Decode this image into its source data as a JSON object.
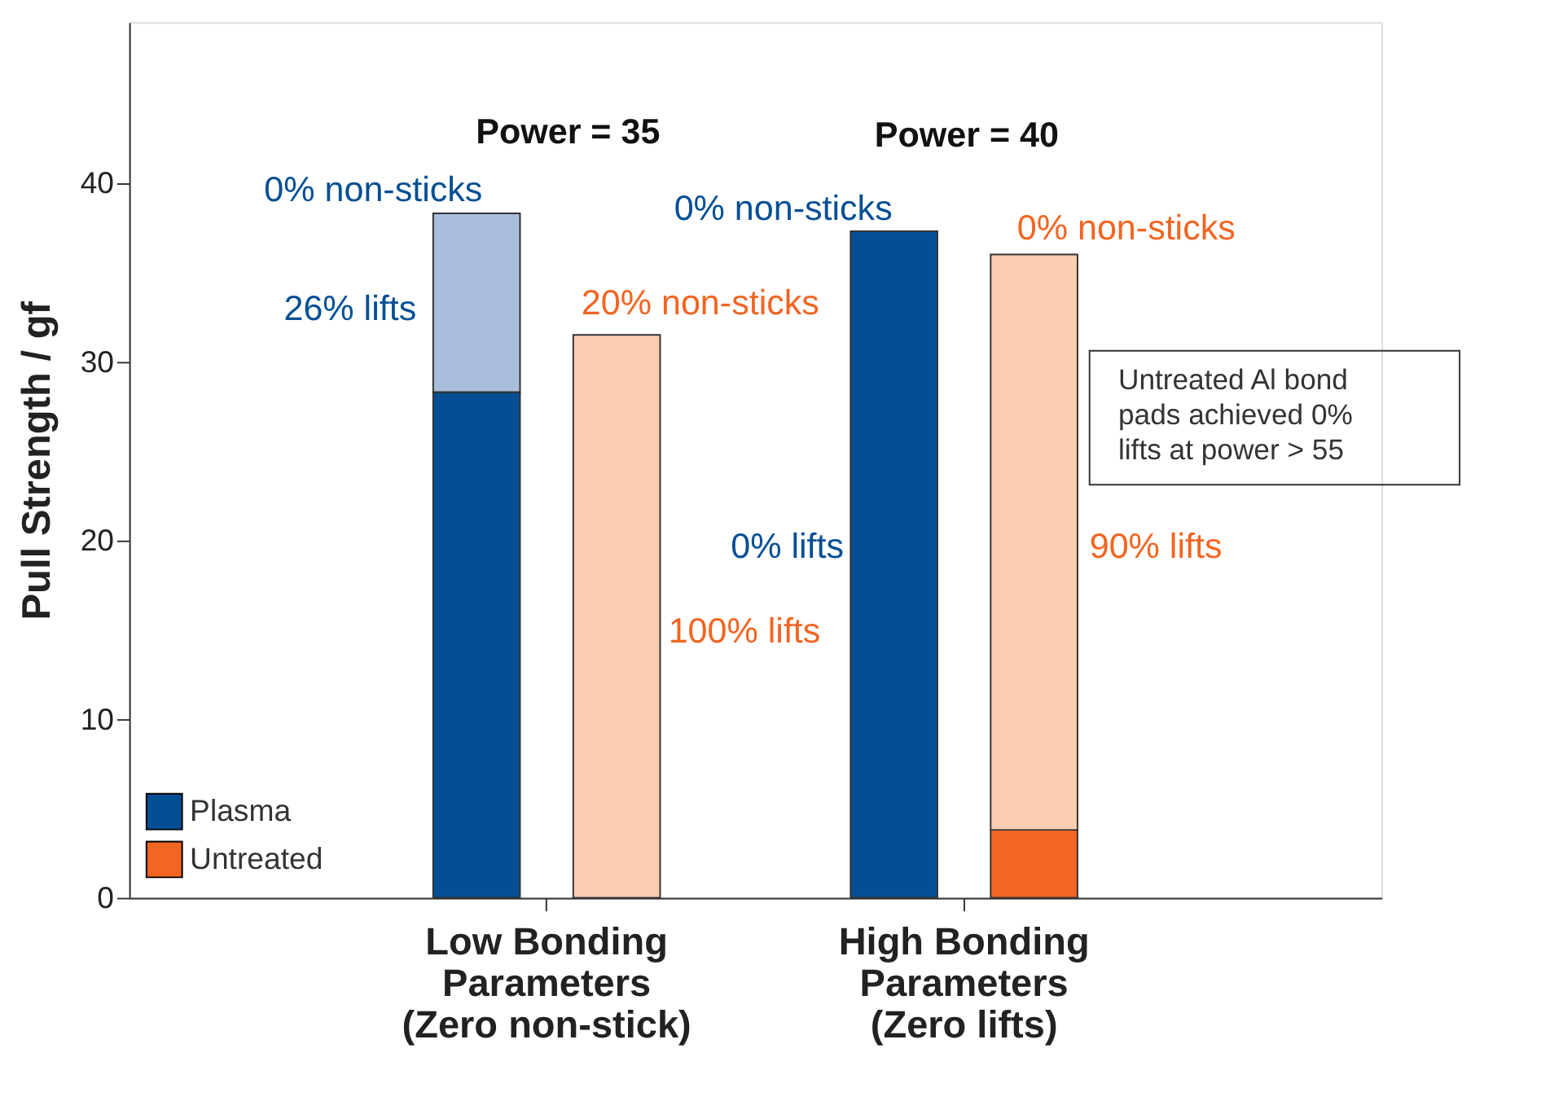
{
  "chart_data": {
    "type": "bar",
    "stacked": true,
    "ylabel": "Pull Strength / gf",
    "categories": [
      null,
      null,
      null,
      null
    ],
    "series": [
      {
        "name": "Plasma",
        "color": "#044f94",
        "values": [
          28.3,
          null,
          37.3,
          null
        ]
      },
      {
        "color": "#a9bedb",
        "values": [
          10.0,
          null,
          null,
          null
        ]
      },
      {
        "name": "Untreated",
        "color": "#f26522",
        "values": [
          null,
          null,
          null,
          3.8
        ]
      },
      {
        "color": "#fbcdb0",
        "values": [
          null,
          31.5,
          null,
          32.2
        ]
      }
    ],
    "ylim": [
      0,
      49
    ],
    "yticks": [
      0,
      10,
      20,
      30,
      40
    ],
    "legend": "bottom left",
    "grid": false,
    "annotations": [
      "0% non-sticks",
      "26% lifts",
      "20% non-sticks",
      "100% lifts",
      "0% non-sticks",
      "0% lifts",
      "0% non-sticks",
      "90% lifts",
      "Power = 35",
      "Power = 40",
      "Untreated Al bond\npads achieved 0%\nlifts at power > 55",
      "Low Bonding\nParameters\n(Zero non-stick)",
      "High Bonding\nParameters\n(Zero lifts)"
    ]
  }
}
